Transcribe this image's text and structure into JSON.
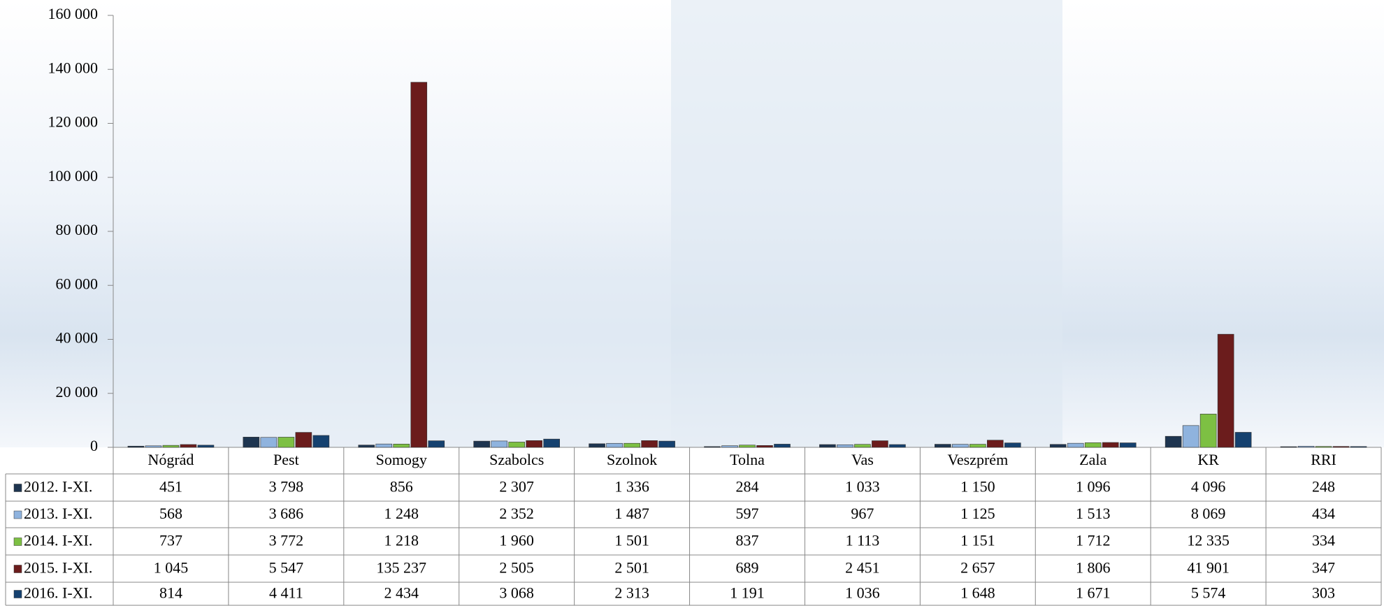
{
  "chart_data": {
    "type": "bar",
    "categories": [
      "Nógrád",
      "Pest",
      "Somogy",
      "Szabolcs",
      "Szolnok",
      "Tolna",
      "Vas",
      "Veszprém",
      "Zala",
      "KR",
      "RRI"
    ],
    "series": [
      {
        "name": "2012. I-XI.",
        "color": "#1e3550",
        "values": [
          451,
          3798,
          856,
          2307,
          1336,
          284,
          1033,
          1150,
          1096,
          4096,
          248
        ],
        "value_labels": [
          "451",
          "3 798",
          "856",
          "2 307",
          "1 336",
          "284",
          "1 033",
          "1 150",
          "1 096",
          "4 096",
          "248"
        ]
      },
      {
        "name": "2013. I-XI.",
        "color": "#8fb3de",
        "values": [
          568,
          3686,
          1248,
          2352,
          1487,
          597,
          967,
          1125,
          1513,
          8069,
          434
        ],
        "value_labels": [
          "568",
          "3 686",
          "1 248",
          "2 352",
          "1 487",
          "597",
          "967",
          "1 125",
          "1 513",
          "8 069",
          "434"
        ]
      },
      {
        "name": "2014. I-XI.",
        "color": "#7dc043",
        "values": [
          737,
          3772,
          1218,
          1960,
          1501,
          837,
          1113,
          1151,
          1712,
          12335,
          334
        ],
        "value_labels": [
          "737",
          "3 772",
          "1 218",
          "1 960",
          "1 501",
          "837",
          "1 113",
          "1 151",
          "1 712",
          "12 335",
          "334"
        ]
      },
      {
        "name": "2015. I-XI.",
        "color": "#6b1c1c",
        "values": [
          1045,
          5547,
          135237,
          2505,
          2501,
          689,
          2451,
          2657,
          1806,
          41901,
          347
        ],
        "value_labels": [
          "1 045",
          "5 547",
          "135 237",
          "2 505",
          "2 501",
          "689",
          "2 451",
          "2 657",
          "1 806",
          "41 901",
          "347"
        ]
      },
      {
        "name": "2016. I-XI.",
        "color": "#15416f",
        "values": [
          814,
          4411,
          2434,
          3068,
          2313,
          1191,
          1036,
          1648,
          1671,
          5574,
          303
        ],
        "value_labels": [
          "814",
          "4 411",
          "2 434",
          "3 068",
          "2 313",
          "1 191",
          "1 036",
          "1 648",
          "1 671",
          "5 574",
          "303"
        ]
      }
    ],
    "ylim": [
      0,
      160000
    ],
    "yticks": [
      0,
      {
        "value": 20000,
        "label": "20 000"
      },
      {
        "value": 40000,
        "label": "40 000"
      },
      {
        "value": 60000,
        "label": "60 000"
      },
      {
        "value": 80000,
        "label": "80 000"
      },
      {
        "value": 100000,
        "label": "100 000"
      },
      {
        "value": 120000,
        "label": "120 000"
      },
      {
        "value": 140000,
        "label": "140 000"
      },
      {
        "value": 160000,
        "label": "160 000"
      }
    ],
    "grid": false
  }
}
